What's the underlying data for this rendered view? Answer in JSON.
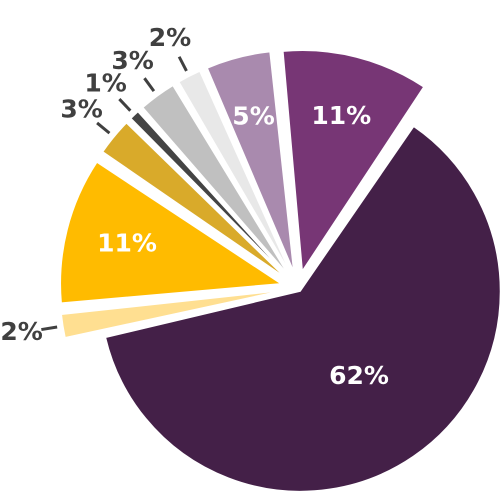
{
  "chart_data": {
    "type": "pie",
    "title": "",
    "exploded": true,
    "start": "top, clockwise",
    "slices": [
      {
        "label": "62%",
        "value": 62,
        "color": "#442048"
      },
      {
        "label": "2%",
        "value": 2,
        "color": "#FFDF91"
      },
      {
        "label": "11%",
        "value": 11,
        "color": "#FFBB00"
      },
      {
        "label": "3%",
        "value": 3,
        "color": "#D9AA2A"
      },
      {
        "label": "1%",
        "value": 1,
        "color": "#444444"
      },
      {
        "label": "3%",
        "value": 3,
        "color": "#C0C0C0"
      },
      {
        "label": "2%",
        "value": 2,
        "color": "#E8E8E8"
      },
      {
        "label": "5%",
        "value": 5,
        "color": "#A98AAE"
      },
      {
        "label": "11%",
        "value": 11,
        "color": "#773675"
      }
    ]
  }
}
